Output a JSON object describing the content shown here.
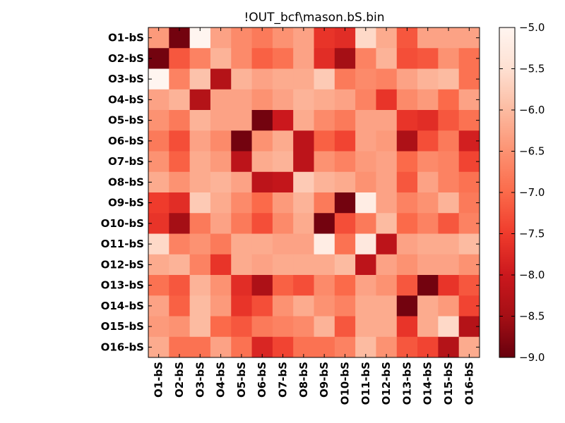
{
  "chart_data": {
    "type": "heatmap",
    "title": "!OUT_bcf\\mason.bS.bin",
    "x_categories": [
      "O1-bS",
      "O2-bS",
      "O3-bS",
      "O4-bS",
      "O5-bS",
      "O6-bS",
      "O7-bS",
      "O8-bS",
      "O9-bS",
      "O10-bS",
      "O11-bS",
      "O12-bS",
      "O13-bS",
      "O14-bS",
      "O15-bS",
      "O16-bS"
    ],
    "y_categories": [
      "O1-bS",
      "O2-bS",
      "O3-bS",
      "O4-bS",
      "O5-bS",
      "O6-bS",
      "O7-bS",
      "O8-bS",
      "O9-bS",
      "O10-bS",
      "O11-bS",
      "O12-bS",
      "O13-bS",
      "O14-bS",
      "O15-bS",
      "O16-bS"
    ],
    "values": [
      [
        -6.4,
        -8.9,
        -5.0,
        -6.3,
        -6.6,
        -6.8,
        -6.5,
        -6.3,
        -7.6,
        -7.7,
        -5.6,
        -6.2,
        -7.2,
        -6.3,
        -6.3,
        -6.3
      ],
      [
        -8.9,
        -7.2,
        -6.7,
        -6.1,
        -6.6,
        -7.1,
        -6.9,
        -6.3,
        -7.7,
        -8.5,
        -6.7,
        -6.1,
        -7.3,
        -7.2,
        -6.5,
        -6.9
      ],
      [
        -5.0,
        -6.7,
        -5.9,
        -8.3,
        -6.1,
        -6.3,
        -6.2,
        -6.2,
        -5.8,
        -6.8,
        -6.6,
        -6.7,
        -6.3,
        -6.1,
        -6.0,
        -6.9
      ],
      [
        -6.3,
        -6.1,
        -8.3,
        -6.3,
        -6.3,
        -6.5,
        -6.3,
        -6.1,
        -6.2,
        -6.3,
        -6.7,
        -7.6,
        -6.6,
        -6.4,
        -7.0,
        -6.3
      ],
      [
        -6.5,
        -6.8,
        -6.1,
        -6.3,
        -6.3,
        -8.9,
        -8.0,
        -6.2,
        -6.6,
        -6.8,
        -6.3,
        -6.3,
        -7.6,
        -7.7,
        -7.2,
        -6.9
      ],
      [
        -6.8,
        -7.3,
        -6.3,
        -6.6,
        -8.9,
        -6.5,
        -6.2,
        -8.2,
        -7.1,
        -7.4,
        -6.3,
        -6.4,
        -8.4,
        -7.3,
        -6.8,
        -7.9
      ],
      [
        -6.5,
        -7.1,
        -6.2,
        -6.4,
        -8.2,
        -6.2,
        -6.1,
        -8.2,
        -6.5,
        -6.7,
        -6.4,
        -6.3,
        -7.0,
        -6.6,
        -6.7,
        -7.4
      ],
      [
        -6.2,
        -6.5,
        -6.2,
        -6.1,
        -6.3,
        -8.2,
        -8.1,
        -5.8,
        -6.1,
        -6.2,
        -6.5,
        -6.3,
        -7.2,
        -6.3,
        -6.7,
        -6.9
      ],
      [
        -7.5,
        -7.7,
        -5.8,
        -6.2,
        -6.6,
        -7.0,
        -6.4,
        -6.1,
        -6.8,
        -8.9,
        -5.2,
        -6.3,
        -6.7,
        -6.5,
        -6.1,
        -6.8
      ],
      [
        -7.6,
        -8.5,
        -6.8,
        -6.3,
        -6.8,
        -7.3,
        -6.6,
        -6.2,
        -8.9,
        -7.3,
        -6.8,
        -6.0,
        -7.0,
        -6.7,
        -7.2,
        -6.7
      ],
      [
        -5.6,
        -6.7,
        -6.5,
        -6.8,
        -6.2,
        -6.2,
        -6.3,
        -6.3,
        -5.2,
        -6.9,
        -5.3,
        -8.2,
        -6.3,
        -6.2,
        -6.2,
        -6.0
      ],
      [
        -6.2,
        -6.1,
        -6.7,
        -7.6,
        -6.2,
        -6.3,
        -6.2,
        -6.2,
        -6.2,
        -6.0,
        -8.2,
        -6.3,
        -6.5,
        -6.3,
        -6.3,
        -6.5
      ],
      [
        -6.9,
        -7.2,
        -6.1,
        -6.5,
        -7.7,
        -8.4,
        -7.1,
        -7.3,
        -6.6,
        -7.0,
        -6.3,
        -6.5,
        -7.2,
        -8.9,
        -7.6,
        -7.2
      ],
      [
        -6.3,
        -7.1,
        -6.0,
        -6.4,
        -7.6,
        -7.3,
        -6.5,
        -6.2,
        -6.5,
        -6.7,
        -6.2,
        -6.2,
        -8.9,
        -6.2,
        -6.4,
        -7.4
      ],
      [
        -6.4,
        -6.5,
        -6.0,
        -7.0,
        -7.2,
        -6.8,
        -6.7,
        -6.6,
        -6.1,
        -7.2,
        -6.2,
        -6.2,
        -7.6,
        -6.2,
        -5.6,
        -8.3
      ],
      [
        -6.2,
        -6.9,
        -6.9,
        -6.3,
        -6.9,
        -7.8,
        -7.4,
        -6.9,
        -6.9,
        -6.7,
        -6.0,
        -6.5,
        -7.2,
        -7.4,
        -8.3,
        -6.2
      ]
    ],
    "colorbar": {
      "min": -9.0,
      "max": -5.0,
      "ticks": [
        -5.0,
        -5.5,
        -6.0,
        -6.5,
        -7.0,
        -7.5,
        -8.0,
        -8.5,
        -9.0
      ],
      "tick_labels": [
        "−5.0",
        "−5.5",
        "−6.0",
        "−6.5",
        "−7.0",
        "−7.5",
        "−8.0",
        "−8.5",
        "−9.0"
      ],
      "colormap": "Reds_r"
    },
    "grid": false,
    "colormap_stops": [
      "#fff5f0",
      "#fee0d2",
      "#fcbba1",
      "#fc9272",
      "#fb6a4a",
      "#ef3b2c",
      "#cb181d",
      "#a50f15",
      "#67000d"
    ]
  }
}
